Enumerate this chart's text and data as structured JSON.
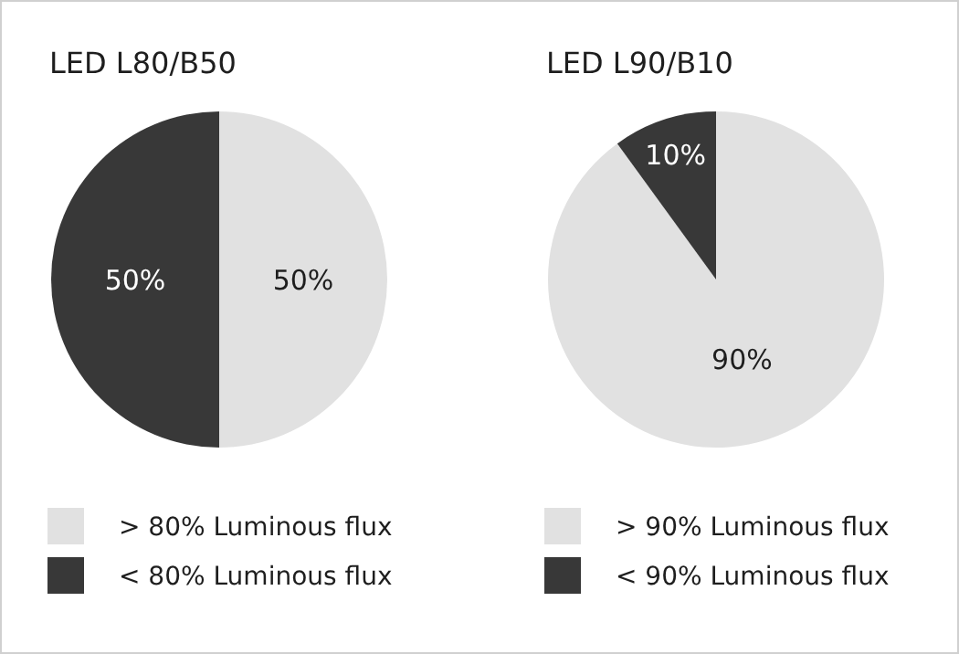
{
  "chart_data": [
    {
      "type": "pie",
      "title": "LED L80/B50",
      "categories": [
        "> 80% Luminous flux",
        "< 80% Luminous flux"
      ],
      "values": [
        50,
        50
      ],
      "colors": [
        "#e1e1e1",
        "#383838"
      ],
      "value_labels": [
        "50%",
        "50%"
      ],
      "legend": "bottom"
    },
    {
      "type": "pie",
      "title": "LED L90/B10",
      "categories": [
        "> 90% Luminous flux",
        "< 90% Luminous flux"
      ],
      "values": [
        90,
        10
      ],
      "colors": [
        "#e1e1e1",
        "#383838"
      ],
      "value_labels": [
        "90%",
        "10%"
      ],
      "legend": "bottom"
    }
  ]
}
